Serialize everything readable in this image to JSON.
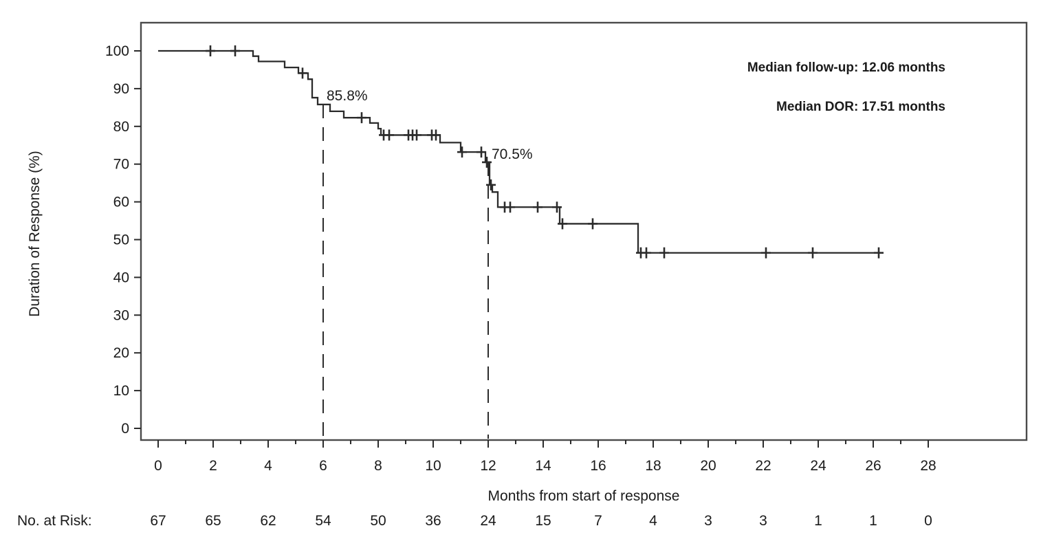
{
  "figure": {
    "background": "#ffffff",
    "text_color": "#1b1b1b",
    "curve_color": "#2b2b2b",
    "frame_color": "#4a4a4a"
  },
  "chart_data": {
    "type": "line",
    "subtype": "kaplan-meier-step-curve",
    "title": "",
    "xlabel": "Months from start of response",
    "ylabel": "Duration of Response (%)",
    "xlim": [
      0,
      28
    ],
    "ylim": [
      0,
      100
    ],
    "x_ticks": [
      0,
      2,
      4,
      6,
      8,
      10,
      12,
      14,
      16,
      18,
      20,
      22,
      24,
      26,
      28
    ],
    "x_minor_ticks": [
      1,
      3,
      5,
      7,
      9,
      11,
      13,
      15,
      17,
      19,
      21,
      23,
      25,
      27
    ],
    "y_ticks": [
      0,
      10,
      20,
      30,
      40,
      50,
      60,
      70,
      80,
      90,
      100
    ],
    "grid": false,
    "legend": "none",
    "series": [
      {
        "name": "Duration of response",
        "steps": [
          [
            0,
            100
          ],
          [
            3.45,
            98.6
          ],
          [
            3.65,
            97.2
          ],
          [
            4.6,
            95.6
          ],
          [
            5.1,
            94.1
          ],
          [
            5.45,
            92.5
          ],
          [
            5.6,
            87.6
          ],
          [
            5.8,
            85.8
          ],
          [
            6.25,
            84.0
          ],
          [
            6.75,
            82.3
          ],
          [
            7.7,
            80.9
          ],
          [
            8.0,
            79.4
          ],
          [
            8.1,
            77.7
          ],
          [
            10.25,
            75.7
          ],
          [
            11.0,
            73.2
          ],
          [
            11.9,
            70.5
          ],
          [
            12.05,
            64.5
          ],
          [
            12.15,
            62.6
          ],
          [
            12.35,
            58.6
          ],
          [
            14.6,
            54.2
          ],
          [
            17.45,
            46.5
          ]
        ],
        "end_time": 26.35,
        "censor_marks": [
          [
            1.9,
            100
          ],
          [
            2.8,
            100
          ],
          [
            5.25,
            94.1
          ],
          [
            7.4,
            82.3
          ],
          [
            8.2,
            77.7
          ],
          [
            8.4,
            77.7
          ],
          [
            9.1,
            77.7
          ],
          [
            9.25,
            77.7
          ],
          [
            9.4,
            77.7
          ],
          [
            9.95,
            77.7
          ],
          [
            10.1,
            77.7
          ],
          [
            11.05,
            73.2
          ],
          [
            11.75,
            73.2
          ],
          [
            11.95,
            70.5
          ],
          [
            12.1,
            64.5
          ],
          [
            12.6,
            58.6
          ],
          [
            12.8,
            58.6
          ],
          [
            13.8,
            58.6
          ],
          [
            14.5,
            58.6
          ],
          [
            14.7,
            54.2
          ],
          [
            15.8,
            54.2
          ],
          [
            17.55,
            46.5
          ],
          [
            17.75,
            46.5
          ],
          [
            18.4,
            46.5
          ],
          [
            22.1,
            46.5
          ],
          [
            23.8,
            46.5
          ],
          [
            26.2,
            46.5
          ]
        ]
      }
    ],
    "reference_lines": [
      {
        "x": 6,
        "level": 85.8,
        "label": "85.8%"
      },
      {
        "x": 12,
        "level": 70.5,
        "label": "70.5%"
      }
    ],
    "annotations": [
      "Median follow-up: 12.06 months",
      "Median DOR: 17.51 months"
    ],
    "at_risk": {
      "label": "No. at Risk:",
      "times": [
        0,
        2,
        4,
        6,
        8,
        10,
        12,
        14,
        16,
        18,
        20,
        22,
        24,
        26,
        28
      ],
      "counts": [
        67,
        65,
        62,
        54,
        50,
        36,
        24,
        15,
        7,
        4,
        3,
        3,
        1,
        1,
        0
      ]
    }
  }
}
